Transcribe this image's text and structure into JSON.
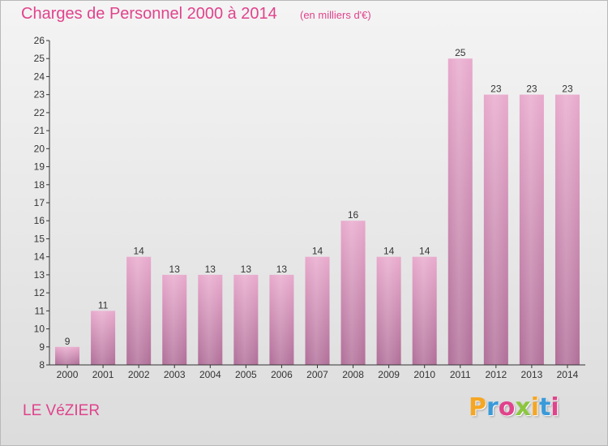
{
  "header": {
    "title": "Charges de Personnel 2000 à 2014",
    "subtitle": "(en milliers d'€)"
  },
  "footer": {
    "place": "LE VéZIER",
    "brand": {
      "text": "Proxiti",
      "letters": [
        {
          "char": "P",
          "color": "#f5a623"
        },
        {
          "char": "r",
          "color": "#3a9ad9"
        },
        {
          "char": "o",
          "color": "#e0438c"
        },
        {
          "char": "x",
          "color": "#8cc63f"
        },
        {
          "char": "i",
          "color": "#f5a623"
        },
        {
          "char": "t",
          "color": "#3a9ad9"
        },
        {
          "char": "i",
          "color": "#e0438c"
        }
      ]
    }
  },
  "colors": {
    "bar_top": "#e8a9cc",
    "bar_bottom": "#b06e98",
    "axis": "#333333",
    "accent": "#e0438c"
  },
  "chart_data": {
    "type": "bar",
    "categories": [
      "2000",
      "2001",
      "2002",
      "2003",
      "2004",
      "2005",
      "2006",
      "2007",
      "2008",
      "2009",
      "2010",
      "2011",
      "2012",
      "2013",
      "2014"
    ],
    "values": [
      9,
      11,
      14,
      13,
      13,
      13,
      13,
      14,
      16,
      14,
      14,
      25,
      23,
      23,
      23
    ],
    "data_labels": [
      "9",
      "11",
      "14",
      "13",
      "13",
      "13",
      "13",
      "14",
      "16",
      "14",
      "14",
      "25",
      "23",
      "23",
      "23"
    ],
    "title": "Charges de Personnel 2000 à 2014",
    "subtitle": "(en milliers d'€)",
    "ylim": [
      8,
      26
    ],
    "yticks": [
      8,
      9,
      10,
      11,
      12,
      13,
      14,
      15,
      16,
      17,
      18,
      19,
      20,
      21,
      22,
      23,
      24,
      25,
      26
    ],
    "grid": false,
    "legend": "none"
  }
}
